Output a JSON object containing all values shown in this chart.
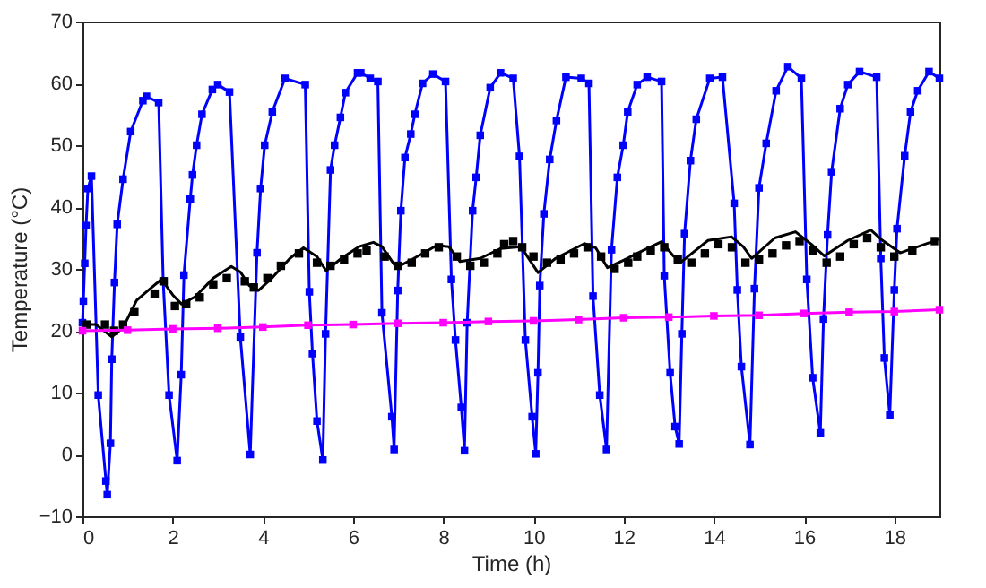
{
  "chart_data": {
    "type": "line",
    "xlabel": "Time (h)",
    "ylabel": "Temperature (°C)",
    "xlim": [
      0,
      19
    ],
    "ylim": [
      -10,
      70
    ],
    "xticks": [
      0,
      2,
      4,
      6,
      8,
      10,
      12,
      14,
      16,
      18
    ],
    "yticks": [
      -10,
      0,
      10,
      20,
      30,
      40,
      50,
      60,
      70
    ],
    "grid": false,
    "line_style": "solid",
    "series": [
      {
        "color": "#0000ff",
        "marker": "square",
        "x": [
          0,
          0.02,
          0.05,
          0.08,
          0.12,
          0.2,
          0.35,
          0.52,
          0.55,
          0.62,
          0.65,
          0.71,
          0.77,
          0.9,
          1.07,
          1.34,
          1.42,
          1.69,
          1.79,
          1.92,
          2.1,
          2.19,
          2.25,
          2.39,
          2.44,
          2.53,
          2.65,
          2.88,
          3.0,
          3.26,
          3.5,
          3.72,
          3.87,
          3.95,
          4.04,
          4.21,
          4.49,
          4.94,
          5.03,
          5.1,
          5.2,
          5.33,
          5.39,
          5.5,
          5.59,
          5.72,
          5.83,
          6.1,
          6.17,
          6.38,
          6.55,
          6.64,
          6.86,
          6.91,
          6.99,
          7.06,
          7.15,
          7.28,
          7.37,
          7.54,
          7.77,
          8.05,
          8.18,
          8.27,
          8.4,
          8.47,
          8.53,
          8.65,
          8.73,
          8.82,
          9.04,
          9.27,
          9.55,
          9.69,
          9.82,
          9.97,
          10.05,
          10.1,
          10.14,
          10.23,
          10.36,
          10.51,
          10.72,
          11.06,
          11.23,
          11.32,
          11.47,
          11.62,
          11.73,
          11.86,
          11.99,
          12.09,
          12.3,
          12.52,
          12.84,
          12.9,
          13.03,
          13.14,
          13.23,
          13.29,
          13.35,
          13.48,
          13.61,
          13.91,
          14.19,
          14.45,
          14.52,
          14.61,
          14.8,
          14.9,
          15.0,
          15.16,
          15.38,
          15.64,
          15.94,
          16.06,
          16.19,
          16.36,
          16.43,
          16.52,
          16.61,
          16.8,
          16.97,
          17.23,
          17.61,
          17.7,
          17.78,
          17.9,
          18.0,
          18.06,
          18.23,
          18.36,
          18.52,
          18.77,
          19.0
        ],
        "values": [
          21.3,
          24.8,
          30.9,
          37,
          43,
          45,
          9.6,
          -4.3,
          -6.5,
          1.8,
          15.4,
          27.8,
          37.2,
          44.5,
          52.2,
          57.2,
          57.9,
          56.9,
          28,
          9.6,
          -1,
          12.9,
          29,
          41.3,
          45.2,
          50,
          55,
          59,
          59.8,
          58.6,
          19,
          0,
          32.6,
          43,
          50,
          55.4,
          60.8,
          59.8,
          26.3,
          16.3,
          5.4,
          -0.9,
          19.5,
          46,
          50,
          54.5,
          58.5,
          61.7,
          61.7,
          60.8,
          60.3,
          22.9,
          6.1,
          0.8,
          26.5,
          39.4,
          48,
          51.8,
          55,
          60,
          61.5,
          60.3,
          28.3,
          18.5,
          7.6,
          0.6,
          21.3,
          39.4,
          44.8,
          51.6,
          59.3,
          61.7,
          60.8,
          48.2,
          18.5,
          6.1,
          0.1,
          13.2,
          27.3,
          38.9,
          47.7,
          54,
          61,
          60.8,
          60,
          25.6,
          9.6,
          0.8,
          33.1,
          44.8,
          50,
          55.4,
          59.8,
          61,
          60.3,
          28.9,
          13.2,
          4.5,
          1.7,
          19.5,
          35.7,
          47.5,
          54.2,
          60.8,
          61,
          40.6,
          26.6,
          14.2,
          1.6,
          26.8,
          43.1,
          50.3,
          58.8,
          62.7,
          60.8,
          28.3,
          12.4,
          3.5,
          21.9,
          35.5,
          45.7,
          55.9,
          59.8,
          61.9,
          61,
          31.7,
          15.6,
          6.4,
          26.6,
          36.5,
          48.3,
          55.4,
          58.8,
          61.9,
          60.8
        ]
      },
      {
        "color": "#000000",
        "marker": "none",
        "x": [
          0,
          0.3,
          0.65,
          0.9,
          1.2,
          1.5,
          1.75,
          2.0,
          2.2,
          2.5,
          2.9,
          3.3,
          3.5,
          3.7,
          3.9,
          4.2,
          4.6,
          4.9,
          5.2,
          5.4,
          5.74,
          6.13,
          6.45,
          6.64,
          6.96,
          7.35,
          7.86,
          8.12,
          8.37,
          8.82,
          9.27,
          9.72,
          10.1,
          10.49,
          11.13,
          11.38,
          11.64,
          12.03,
          12.32,
          12.84,
          13.1,
          13.29,
          13.87,
          14.39,
          14.65,
          14.84,
          15.35,
          15.81,
          16.19,
          16.45,
          16.97,
          17.48,
          17.74,
          18.13,
          19.0
        ],
        "values": [
          21,
          21,
          19,
          20.5,
          24.9,
          26.8,
          28.3,
          25.8,
          24.3,
          25.5,
          28.5,
          30.4,
          29.5,
          27.3,
          26.5,
          28.5,
          31.7,
          33.4,
          32,
          29.7,
          31.7,
          33.6,
          34.3,
          33.6,
          30.2,
          31.7,
          33.8,
          33.6,
          31.2,
          31.7,
          33.3,
          33.6,
          29.4,
          31.7,
          34.1,
          33.4,
          30.2,
          31.5,
          32.6,
          34.4,
          32.1,
          31.2,
          34.6,
          35.2,
          33.6,
          31.7,
          35,
          36,
          33.8,
          32.1,
          34.6,
          36.3,
          34.6,
          32.6,
          34.8
        ]
      },
      {
        "type": "scatter",
        "color": "#000000",
        "marker": "square",
        "x": [
          0.1,
          0.5,
          0.7,
          0.9,
          1.15,
          1.6,
          1.8,
          2.05,
          2.3,
          2.6,
          2.9,
          3.2,
          3.6,
          3.8,
          4.1,
          4.4,
          4.8,
          5.2,
          5.5,
          5.8,
          6.1,
          6.3,
          6.7,
          7.0,
          7.3,
          7.6,
          7.9,
          8.3,
          8.6,
          8.9,
          9.2,
          9.35,
          9.55,
          9.75,
          10.0,
          10.3,
          10.6,
          10.9,
          11.2,
          11.5,
          11.8,
          12.1,
          12.3,
          12.6,
          12.9,
          13.2,
          13.5,
          13.8,
          14.1,
          14.4,
          14.7,
          15.0,
          15.3,
          15.6,
          15.9,
          16.2,
          16.5,
          16.8,
          17.1,
          17.4,
          17.7,
          18.0,
          18.4,
          18.9
        ],
        "values": [
          21,
          21,
          20,
          21,
          23,
          26,
          28,
          24,
          24.3,
          25.4,
          27.5,
          28.5,
          28,
          27,
          28.5,
          30.5,
          32.5,
          31,
          30.5,
          31.5,
          32.5,
          33,
          32,
          30.5,
          31,
          32.5,
          33.5,
          32,
          30.5,
          31,
          32.5,
          34,
          34.5,
          33.5,
          32,
          31,
          31.5,
          32.5,
          33.5,
          32,
          30,
          31,
          32,
          33,
          33.5,
          31.5,
          31,
          32.5,
          34,
          33.5,
          31,
          31.5,
          32.5,
          33.8,
          34.5,
          33,
          31,
          32,
          34,
          35,
          33.5,
          32,
          33,
          34.5
        ]
      },
      {
        "color": "#ff00ff",
        "marker": "square",
        "x": [
          0,
          1,
          2,
          3,
          4,
          5,
          6,
          7,
          8,
          9,
          10,
          11,
          12,
          13,
          14,
          15,
          16,
          17,
          18,
          19
        ],
        "values": [
          20,
          20.1,
          20.3,
          20.4,
          20.6,
          20.9,
          21,
          21.2,
          21.3,
          21.5,
          21.6,
          21.8,
          22.1,
          22.2,
          22.4,
          22.5,
          22.8,
          23,
          23.1,
          23.4
        ]
      }
    ]
  }
}
